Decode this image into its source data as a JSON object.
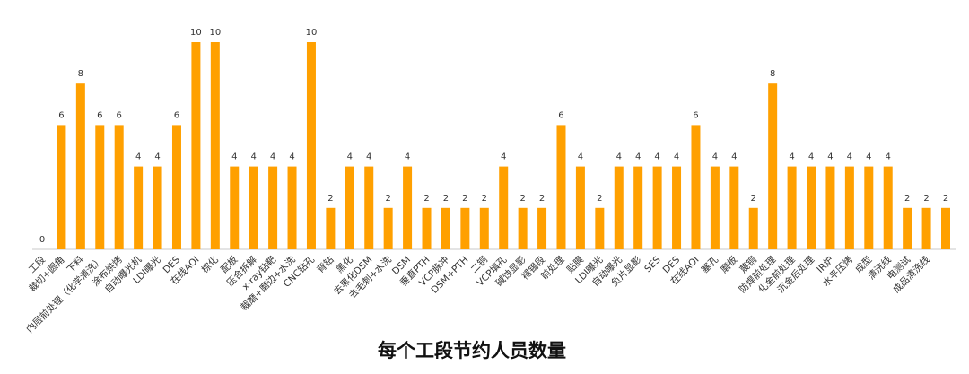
{
  "chart_data": {
    "type": "bar",
    "title": "每个工段节约人员数量",
    "categories": [
      "工段",
      "裁切+圆角",
      "下料",
      "内层前处理（化学清洗）",
      "涂布烘烤",
      "自动曝光机",
      "LDI曝光",
      "DES",
      "在线AOI",
      "棕化",
      "配板",
      "压合拆解",
      "x-ray钻靶",
      "裁磨+磨边+水洗",
      "CNC钻孔",
      "背钻",
      "黑化",
      "去黑化DSM",
      "去毛刺+水洗",
      "DSM",
      "垂直PTH",
      "VCP脉冲",
      "DSM+PTH",
      "二铜",
      "VCP填孔",
      "碱蚀显影",
      "褪锡段",
      "前处理",
      "贴膜",
      "LDI曝光",
      "自动曝光",
      "负片显影",
      "SES",
      "DES",
      "在线AOI",
      "塞孔",
      "磨板",
      "蔑铜",
      "防焊前处理",
      "化金前处理",
      "沉金后处理",
      "IR炉",
      "水平压烤",
      "成型",
      "清洗线",
      "电测试",
      "成品清洗线",
      null
    ],
    "values": [
      0,
      6,
      8,
      6,
      6,
      4,
      4,
      6,
      10,
      10,
      4,
      4,
      4,
      4,
      10,
      2,
      4,
      4,
      2,
      4,
      2,
      2,
      2,
      2,
      4,
      2,
      2,
      6,
      4,
      2,
      4,
      4,
      4,
      4,
      6,
      4,
      4,
      2,
      8,
      4,
      4,
      4,
      4,
      4,
      4,
      2,
      2,
      2
    ],
    "color": "#ffa000",
    "ylim": [
      0,
      10
    ]
  }
}
